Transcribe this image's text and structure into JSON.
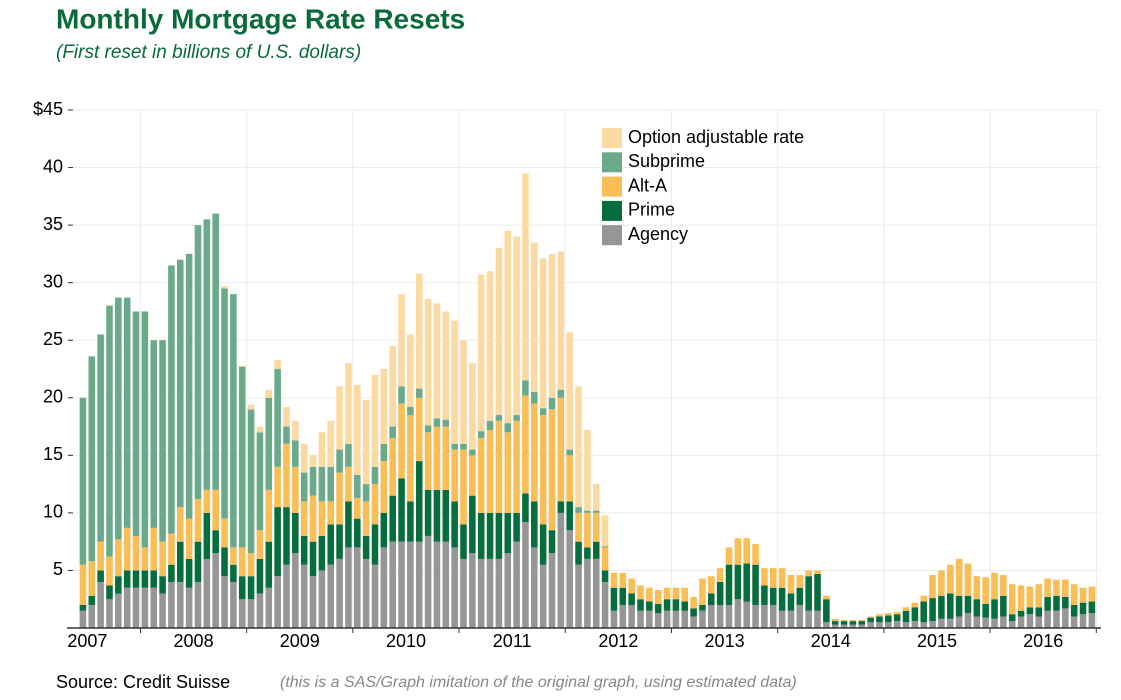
{
  "chart_data": {
    "type": "stacked_bar",
    "title": "Monthly Mortgage Rate Resets",
    "subtitle": "(First reset in billions of U.S. dollars)",
    "source": "Source: Credit Suisse",
    "note": "(this is a SAS/Graph imitation of the original graph, using estimated data)",
    "categories": [
      "2007",
      null,
      null,
      null,
      null,
      null,
      null,
      null,
      null,
      null,
      null,
      null,
      "2008",
      null,
      null,
      null,
      null,
      null,
      null,
      null,
      null,
      null,
      null,
      null,
      "2009",
      null,
      null,
      null,
      null,
      null,
      null,
      null,
      null,
      null,
      null,
      null,
      "2010",
      null,
      null,
      null,
      null,
      null,
      null,
      null,
      null,
      null,
      null,
      null,
      "2011",
      null,
      null,
      null,
      null,
      null,
      null,
      null,
      null,
      null,
      null,
      null,
      "2012",
      null,
      null,
      null,
      null,
      null,
      null,
      null,
      null,
      null,
      null,
      null,
      "2013",
      null,
      null,
      null,
      null,
      null,
      null,
      null,
      null,
      null,
      null,
      null,
      "2014",
      null,
      null,
      null,
      null,
      null,
      null,
      null,
      null,
      null,
      null,
      null,
      "2015",
      null,
      null,
      null,
      null,
      null,
      null,
      null,
      null,
      null,
      null,
      null,
      "2016",
      null,
      null,
      null,
      null,
      null,
      null
    ],
    "ylim": [
      0,
      45
    ],
    "yticks": [
      5,
      10,
      15,
      20,
      25,
      30,
      35,
      40,
      {
        "value": 45,
        "label": "$45"
      }
    ],
    "grid": true,
    "series": [
      {
        "name": "Agency",
        "color": "#969696",
        "values": [
          1.5,
          2,
          4,
          2.5,
          3,
          3.5,
          3.5,
          3.5,
          3.5,
          3,
          4,
          4,
          3.5,
          4,
          6,
          6.5,
          4.5,
          4,
          2.5,
          2.5,
          3,
          3.5,
          4.5,
          5.5,
          6.5,
          5.5,
          4.5,
          5,
          5.5,
          6,
          7,
          7,
          6,
          5.5,
          7,
          7.5,
          7.5,
          7.5,
          7.5,
          8,
          7.5,
          7.5,
          7,
          6,
          6.5,
          6,
          6,
          6,
          6.5,
          7.5,
          9.2,
          7,
          5.5,
          6.5,
          10,
          8.5,
          5.5,
          6,
          6,
          4,
          1.5,
          2,
          2,
          1.5,
          1.5,
          1.3,
          1.5,
          1.5,
          1.5,
          1,
          1.5,
          2,
          2,
          2,
          2.5,
          2.3,
          2,
          2,
          2,
          1.5,
          1.5,
          2,
          1.5,
          1.5,
          0.5,
          0.3,
          0.3,
          0.3,
          0.3,
          0.5,
          0.5,
          0.5,
          0.6,
          0.5,
          0.6,
          0.5,
          0.6,
          0.8,
          0.8,
          1,
          1.3,
          1,
          0.9,
          0.8,
          1,
          0.6,
          1,
          1.2,
          1,
          1.5,
          1.5,
          1.7,
          1,
          1.2,
          1.3
        ]
      },
      {
        "name": "Prime",
        "color": "#066d3c",
        "values": [
          0.5,
          0.8,
          1,
          1.2,
          1.5,
          1.5,
          1.5,
          1.5,
          1.5,
          1.5,
          1.5,
          3.5,
          2.5,
          3.5,
          4,
          2,
          2.5,
          1.5,
          2,
          2,
          3,
          4,
          6,
          5,
          3.5,
          2.5,
          3,
          3,
          3.5,
          3,
          4,
          2.5,
          2,
          3.5,
          3,
          4,
          5.5,
          3.5,
          7,
          4,
          4.5,
          4.5,
          4,
          3,
          5,
          4,
          4,
          4,
          3.5,
          2.5,
          2.5,
          4,
          3.5,
          2,
          1,
          2.5,
          2,
          1,
          1.5,
          1,
          2,
          1.5,
          1,
          1,
          0.8,
          0.8,
          1,
          1,
          0.8,
          0.7,
          0.5,
          1,
          2,
          3.5,
          3,
          3.3,
          3.5,
          1.7,
          1.5,
          2,
          1.5,
          1.5,
          3,
          3.2,
          2,
          0.3,
          0.3,
          0.3,
          0.3,
          0.4,
          0.5,
          0.6,
          0.6,
          1,
          1.2,
          1.8,
          2,
          2,
          2.2,
          1.8,
          1.5,
          1.5,
          1.2,
          1.7,
          1.8,
          0.6,
          0.5,
          0.6,
          0.8,
          1.2,
          1.3,
          1,
          1,
          1,
          1
        ]
      },
      {
        "name": "Alt-A",
        "color": "#fbbd55",
        "values": [
          3.5,
          3,
          2.5,
          2.5,
          3.2,
          3.7,
          3,
          2,
          3.7,
          3,
          2.7,
          3,
          3.5,
          3.7,
          2,
          3.5,
          2.5,
          1.5,
          2.5,
          2,
          2.5,
          4.5,
          3.5,
          5.5,
          4,
          3,
          4,
          3,
          2,
          4.5,
          3,
          1.8,
          3,
          3.5,
          4.5,
          5,
          6.5,
          7.5,
          5.5,
          5,
          5.5,
          5.5,
          4.5,
          6.5,
          3.5,
          6.5,
          7.2,
          8,
          7,
          8,
          8.5,
          8.5,
          9.5,
          10.5,
          9,
          4,
          2.5,
          3,
          2.5,
          2,
          1.3,
          1.3,
          1.3,
          1.2,
          1.2,
          1.2,
          1,
          1,
          1.2,
          1,
          2.3,
          1.5,
          1.2,
          1.5,
          2.3,
          2.2,
          1.8,
          1.5,
          1.7,
          1.7,
          1.6,
          1.1,
          0.5,
          0.3,
          0.3,
          0.2,
          0.1,
          0.1,
          0.1,
          0.1,
          0.2,
          0.2,
          0.2,
          0.3,
          0.4,
          0.5,
          2,
          2.2,
          2.5,
          3.2,
          2.8,
          2,
          2.3,
          2.3,
          1.8,
          2.6,
          2.2,
          1.8,
          2,
          1.6,
          1.4,
          1.5,
          1.8,
          1.3,
          1.3
        ]
      },
      {
        "name": "Subprime",
        "color": "#6aaa8a",
        "values": [
          14.5,
          17.8,
          18,
          21.8,
          21,
          20,
          19.5,
          20.5,
          16.3,
          17.5,
          23.3,
          21.5,
          23,
          23.8,
          23.5,
          24,
          20,
          22,
          15.7,
          12.5,
          8.5,
          8,
          8.5,
          1.5,
          2.3,
          2.5,
          2.5,
          3,
          3,
          2,
          2,
          2,
          1.5,
          1.5,
          1.5,
          1,
          1.5,
          0.7,
          0.8,
          0.6,
          0.7,
          0.6,
          0.5,
          0.5,
          0.5,
          0.6,
          0.8,
          0.5,
          0.8,
          0.5,
          1.3,
          1,
          0.6,
          1,
          0.7,
          0.5,
          0.5,
          0.2,
          0.2,
          0.1,
          0,
          0,
          0,
          0,
          0,
          0,
          0,
          0,
          0,
          0,
          0,
          0,
          0,
          0,
          0,
          0,
          0,
          0,
          0,
          0,
          0,
          0,
          0,
          0,
          0,
          0,
          0,
          0,
          0,
          0,
          0,
          0,
          0,
          0,
          0,
          0,
          0,
          0,
          0,
          0,
          0,
          0,
          0,
          0,
          0,
          0,
          0,
          0,
          0,
          0,
          0,
          0,
          0,
          0,
          0
        ]
      },
      {
        "name": "Option adjustable rate",
        "color": "#fcd9a0",
        "values": [
          0,
          0,
          0,
          0,
          0,
          0,
          0,
          0,
          0,
          0,
          0,
          0,
          0,
          0,
          0,
          0,
          0.2,
          0,
          0.1,
          0.4,
          0.5,
          0.7,
          0.8,
          1.7,
          1.7,
          2.5,
          1,
          3,
          4,
          5.5,
          7,
          7.8,
          7.3,
          8,
          6.5,
          7,
          8,
          6.3,
          10,
          11,
          10,
          9.4,
          10.7,
          9,
          7.5,
          13.6,
          13,
          14.5,
          16.7,
          15.5,
          18,
          13,
          13,
          12.5,
          12,
          10.2,
          10.5,
          7,
          2.3,
          2.7,
          0,
          0,
          0,
          0,
          0,
          0,
          0,
          0,
          0,
          0,
          0,
          0,
          0,
          0,
          0,
          0,
          0,
          0,
          0,
          0,
          0,
          0,
          0,
          0,
          0,
          0,
          0,
          0,
          0,
          0,
          0,
          0,
          0,
          0,
          0,
          0,
          0,
          0,
          0,
          0,
          0,
          0,
          0,
          0,
          0,
          0,
          0,
          0,
          0,
          0,
          0,
          0,
          0,
          0,
          0
        ]
      }
    ]
  }
}
